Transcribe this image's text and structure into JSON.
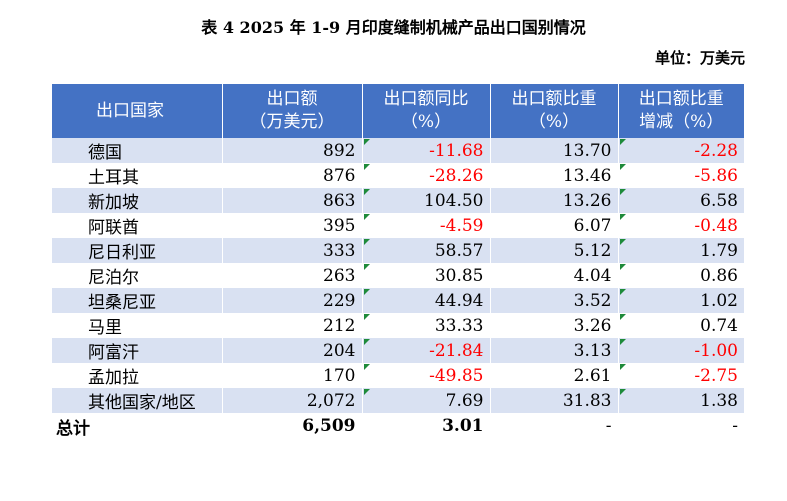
{
  "title": "表 4  2025 年 1-9 月印度缝制机械产品出口国别情况",
  "unit": "单位：万美元",
  "headers": [
    [
      "出口国家",
      ""
    ],
    [
      "出口额",
      "（万美元）"
    ],
    [
      "出口额同比",
      "（%）"
    ],
    [
      "出口额比重",
      "（%）"
    ],
    [
      "出口额比重",
      "增减（%）"
    ]
  ],
  "rows": [
    {
      "country": "德国",
      "value": "892",
      "yoy": "-11.68",
      "share": "13.70",
      "change": "-2.28"
    },
    {
      "country": "土耳其",
      "value": "876",
      "yoy": "-28.26",
      "share": "13.46",
      "change": "-5.86"
    },
    {
      "country": "新加坡",
      "value": "863",
      "yoy": "104.50",
      "share": "13.26",
      "change": "6.58"
    },
    {
      "country": "阿联酋",
      "value": "395",
      "yoy": "-4.59",
      "share": "6.07",
      "change": "-0.48"
    },
    {
      "country": "尼日利亚",
      "value": "333",
      "yoy": "58.57",
      "share": "5.12",
      "change": "1.79"
    },
    {
      "country": "尼泊尔",
      "value": "263",
      "yoy": "30.85",
      "share": "4.04",
      "change": "0.86"
    },
    {
      "country": "坦桑尼亚",
      "value": "229",
      "yoy": "44.94",
      "share": "3.52",
      "change": "1.02"
    },
    {
      "country": "马里",
      "value": "212",
      "yoy": "33.33",
      "share": "3.26",
      "change": "0.74"
    },
    {
      "country": "阿富汗",
      "value": "204",
      "yoy": "-21.84",
      "share": "3.13",
      "change": "-1.00"
    },
    {
      "country": "孟加拉",
      "value": "170",
      "yoy": "-49.85",
      "share": "2.61",
      "change": "-2.75"
    },
    {
      "country": "其他国家/地区",
      "value": "2,072",
      "yoy": "7.69",
      "share": "31.83",
      "change": "1.38"
    }
  ],
  "total": {
    "label": "总计",
    "value": "6,509",
    "yoy": "3.01",
    "share": "-",
    "change": "-"
  },
  "colors": {
    "header_bg": "#4472c4",
    "band": "#d9e1f2",
    "negative": "#ff0000",
    "marker": "#1e8a3a"
  }
}
